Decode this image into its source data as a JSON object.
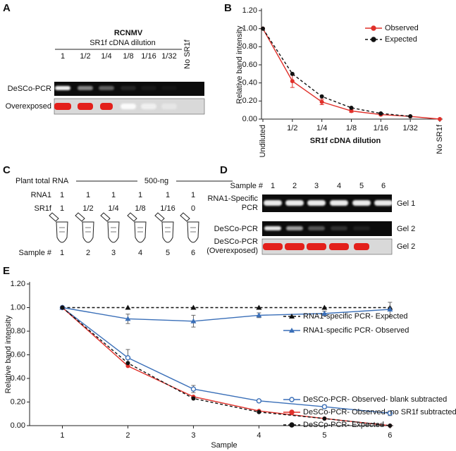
{
  "panel_labels": [
    "A",
    "B",
    "C",
    "D",
    "E"
  ],
  "panel_a": {
    "title": "RCNMV",
    "subtitle": "SR1f cDNA dilution",
    "lanes": [
      "1",
      "1/2",
      "1/4",
      "1/8",
      "1/16",
      "1/32",
      "No SR1f"
    ],
    "rows": [
      "DeSCo-PCR",
      "Overexposed"
    ]
  },
  "panel_c": {
    "header": "Plant total RNA",
    "amount": "500-ng",
    "rows": [
      {
        "label": "RNA1",
        "values": [
          "1",
          "1",
          "1",
          "1",
          "1",
          "1"
        ]
      },
      {
        "label": "SR1f",
        "values": [
          "1",
          "1/2",
          "1/4",
          "1/8",
          "1/16",
          "0"
        ]
      }
    ],
    "sample_label": "Sample #",
    "samples": [
      "1",
      "2",
      "3",
      "4",
      "5",
      "6"
    ]
  },
  "panel_d": {
    "sample_label": "Sample #",
    "samples": [
      "1",
      "2",
      "3",
      "4",
      "5",
      "6"
    ],
    "rows": [
      {
        "label": [
          "RNA1-Specific",
          "PCR"
        ],
        "gel": "Gel 1"
      },
      {
        "label": [
          "DeSCo-PCR"
        ],
        "gel": "Gel 2"
      },
      {
        "label": [
          "DeSCo-PCR",
          "(Overexposed)"
        ],
        "gel": "Gel 2"
      }
    ]
  },
  "chart_data": [
    {
      "type": "line",
      "y_label": "Relative band intensity",
      "x_label": "SR1f cDNA dilution",
      "categories": [
        "Undiluted",
        "1/2",
        "1/4",
        "1/8",
        "1/16",
        "1/32",
        "No SR1f"
      ],
      "ylim": [
        0,
        1.2
      ],
      "yticks": [
        {
          "value": 0,
          "label": "0.00"
        },
        {
          "value": 0.2,
          "label": "0.20"
        },
        {
          "value": 0.4,
          "label": "0.40"
        },
        {
          "value": 0.6,
          "label": "0.60"
        },
        {
          "value": 0.8,
          "label": "0.80"
        },
        {
          "value": 1,
          "label": "1.00"
        },
        {
          "value": 1.2,
          "label": "1.20"
        }
      ],
      "legend": "upper right",
      "series": [
        {
          "name": "Observed",
          "color": "#e0302a",
          "marker": "circle",
          "dash": false,
          "values": [
            1,
            0.42,
            0.19,
            0.09,
            0.05,
            0.03,
            0
          ],
          "errors": [
            0,
            0.07,
            0.03,
            0.015,
            0.01,
            0.005,
            0
          ]
        },
        {
          "name": "Expected",
          "color": "#111111",
          "marker": "circle",
          "dash": true,
          "values": [
            1,
            0.5,
            0.25,
            0.125,
            0.0625,
            0.03125,
            null
          ]
        }
      ]
    },
    {
      "type": "line",
      "y_label": "Relative band intensity",
      "x_label": "Sample",
      "x": [
        1,
        2,
        3,
        4,
        5,
        6
      ],
      "xlim": [
        0.5,
        6.05
      ],
      "xticks": [
        1,
        2,
        3,
        4,
        5,
        6
      ],
      "ylim": [
        0,
        1.2
      ],
      "yticks": [
        {
          "value": 0,
          "label": "0.00"
        },
        {
          "value": 0.2,
          "label": "0.20"
        },
        {
          "value": 0.4,
          "label": "0.40"
        },
        {
          "value": 0.6,
          "label": "0.60"
        },
        {
          "value": 0.8,
          "label": "0.80"
        },
        {
          "value": 1,
          "label": "1.00"
        },
        {
          "value": 1.2,
          "label": "1.20"
        }
      ],
      "legend": "right",
      "series": [
        {
          "name": "RNA1-specific PCR- Expected",
          "color": "#111111",
          "marker": "triangle",
          "dash": true,
          "values": [
            1,
            1,
            1,
            1,
            1,
            1
          ]
        },
        {
          "name": "RNA1-specific PCR- Observed",
          "color": "#3a6fb8",
          "marker": "triangle",
          "dash": false,
          "values": [
            1,
            0.905,
            0.885,
            0.935,
            0.95,
            0.985
          ],
          "errors": [
            0,
            0.04,
            0.05,
            0.02,
            0.02,
            0.06
          ]
        },
        {
          "name": "DeSCo-PCR- Observed- blank subtracted",
          "color": "#3a6fb8",
          "marker": "open-circle",
          "dash": false,
          "values": [
            1,
            0.575,
            0.31,
            0.21,
            0.16,
            0.105
          ],
          "errors": [
            0,
            0.07,
            0.03,
            0.01,
            0.015,
            0.02
          ]
        },
        {
          "name": "DeSCo-PCR- Observed- no SR1f subtracted",
          "color": "#e0302a",
          "marker": "circle",
          "dash": false,
          "values": [
            1,
            0.505,
            0.245,
            0.125,
            0.06,
            0
          ]
        },
        {
          "name": "DeSCo-PCR- Expected",
          "color": "#111111",
          "marker": "circle",
          "dash": true,
          "values": [
            1,
            0.53,
            0.23,
            0.115,
            0.06,
            0
          ]
        }
      ]
    }
  ]
}
